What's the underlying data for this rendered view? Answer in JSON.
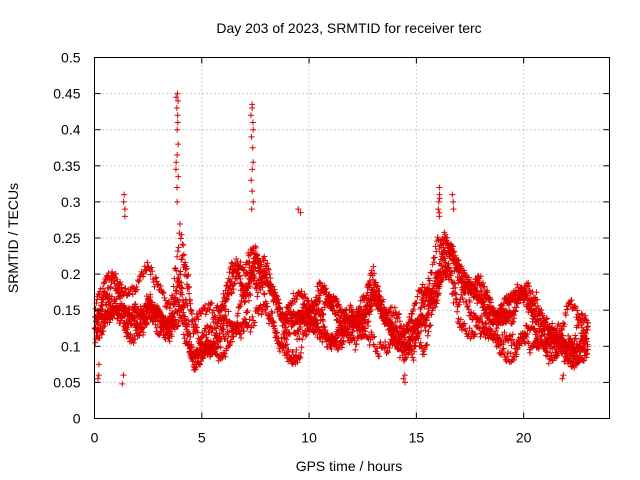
{
  "chart_data": {
    "type": "scatter",
    "title": "Day 203 of 2023, SRMTID for receiver terc",
    "xlabel": "GPS time / hours",
    "ylabel": "SRMTID / TECUs",
    "xlim": [
      0,
      24
    ],
    "ylim": [
      0,
      0.5
    ],
    "xticks": [
      0,
      5,
      10,
      15,
      20
    ],
    "xtick_labels": [
      "0",
      "5",
      "10",
      "15",
      "20"
    ],
    "yticks": [
      0,
      0.05,
      0.1,
      0.15,
      0.2,
      0.25,
      0.3,
      0.35,
      0.4,
      0.45,
      0.5
    ],
    "ytick_labels": [
      "0",
      "0.05",
      "0.1",
      "0.15",
      "0.2",
      "0.25",
      "0.3",
      "0.35",
      "0.4",
      "0.45",
      "0.5"
    ],
    "grid": true,
    "marker": "+",
    "marker_color": "#e00000",
    "series": [
      {
        "name": "SRMTID",
        "envelope": {
          "hours": [
            0,
            0.5,
            1,
            1.5,
            2,
            2.5,
            3,
            3.5,
            3.8,
            4.0,
            4.3,
            4.6,
            5,
            5.5,
            6,
            6.5,
            7,
            7.3,
            7.5,
            7.8,
            8.2,
            8.8,
            9.5,
            10,
            10.5,
            11,
            11.5,
            12,
            12.5,
            13,
            13.5,
            14,
            14.5,
            15,
            15.5,
            16,
            16.3,
            16.7,
            17,
            17.5,
            18,
            18.5,
            19,
            19.5,
            20,
            20.5,
            21,
            21.5,
            22,
            22.5,
            23
          ],
          "center": [
            0.13,
            0.16,
            0.17,
            0.15,
            0.15,
            0.17,
            0.16,
            0.15,
            0.18,
            0.2,
            0.16,
            0.1,
            0.11,
            0.12,
            0.13,
            0.17,
            0.16,
            0.18,
            0.19,
            0.18,
            0.16,
            0.11,
            0.13,
            0.14,
            0.15,
            0.13,
            0.12,
            0.13,
            0.13,
            0.15,
            0.12,
            0.11,
            0.1,
            0.12,
            0.15,
            0.19,
            0.22,
            0.19,
            0.17,
            0.15,
            0.15,
            0.13,
            0.12,
            0.13,
            0.15,
            0.14,
            0.12,
            0.11,
            0.12,
            0.11,
            0.12
          ],
          "spread": [
            0.04,
            0.05,
            0.06,
            0.05,
            0.04,
            0.05,
            0.05,
            0.05,
            0.07,
            0.08,
            0.06,
            0.04,
            0.04,
            0.05,
            0.05,
            0.06,
            0.05,
            0.07,
            0.07,
            0.06,
            0.05,
            0.04,
            0.05,
            0.05,
            0.05,
            0.04,
            0.04,
            0.05,
            0.05,
            0.06,
            0.04,
            0.04,
            0.04,
            0.05,
            0.05,
            0.06,
            0.07,
            0.06,
            0.05,
            0.04,
            0.05,
            0.04,
            0.04,
            0.05,
            0.05,
            0.05,
            0.04,
            0.04,
            0.05,
            0.04,
            0.04
          ]
        },
        "peaks": [
          {
            "hour": 3.85,
            "values": [
              0.45,
              0.445,
              0.44,
              0.43,
              0.42,
              0.41,
              0.4,
              0.38,
              0.365,
              0.355,
              0.345,
              0.335,
              0.32,
              0.3
            ]
          },
          {
            "hour": 7.35,
            "values": [
              0.435,
              0.43,
              0.42,
              0.41,
              0.4,
              0.39,
              0.375,
              0.355,
              0.345,
              0.33,
              0.315,
              0.3,
              0.29
            ]
          },
          {
            "hour": 1.4,
            "values": [
              0.31,
              0.3,
              0.29,
              0.28
            ]
          },
          {
            "hour": 9.55,
            "values": [
              0.29,
              0.285
            ]
          },
          {
            "hour": 16.05,
            "values": [
              0.32,
              0.31,
              0.305,
              0.3,
              0.29,
              0.285,
              0.28
            ]
          },
          {
            "hour": 16.7,
            "values": [
              0.31,
              0.3,
              0.29
            ]
          },
          {
            "hour": 1.35,
            "values": [
              0.048,
              0.06
            ]
          },
          {
            "hour": 0.15,
            "values": [
              0.055,
              0.06,
              0.075
            ]
          },
          {
            "hour": 14.45,
            "values": [
              0.05,
              0.055,
              0.06
            ]
          },
          {
            "hour": 21.8,
            "values": [
              0.055,
              0.06
            ]
          }
        ],
        "time_range_hours": [
          0,
          23
        ]
      }
    ]
  }
}
